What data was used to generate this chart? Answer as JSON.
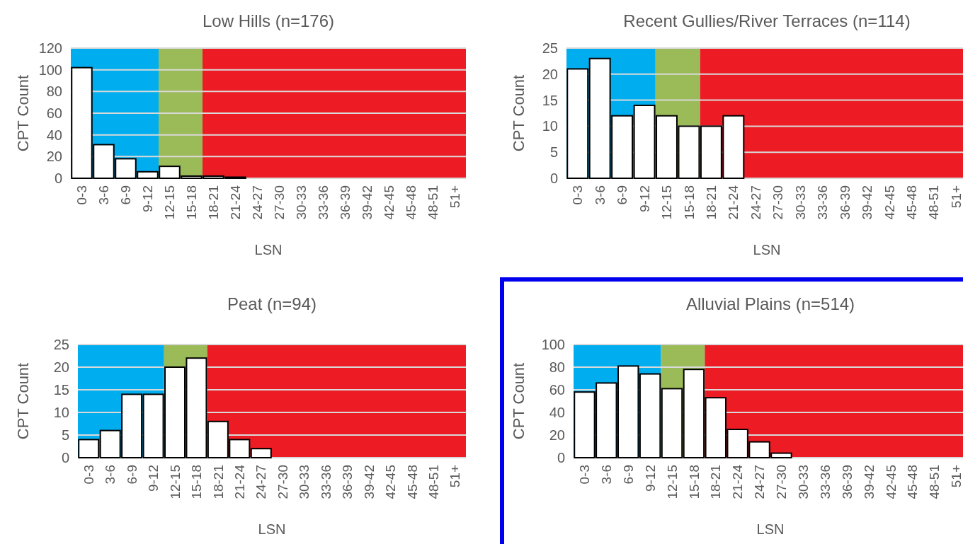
{
  "chart_data": [
    {
      "type": "bar",
      "title": "Low Hills (n=176)",
      "xlabel": "LSN",
      "ylabel": "CPT Count",
      "categories": [
        "0-3",
        "3-6",
        "6-9",
        "9-12",
        "12-15",
        "15-18",
        "18-21",
        "21-24",
        "24-27",
        "27-30",
        "30-33",
        "33-36",
        "36-39",
        "39-42",
        "42-45",
        "45-48",
        "48-51",
        "51+"
      ],
      "series": [
        {
          "color": "#ffffff",
          "values": [
            102,
            31,
            18,
            6,
            11,
            2,
            2,
            1,
            0,
            0,
            0,
            0,
            0,
            0,
            0,
            0,
            0,
            0
          ]
        }
      ],
      "ylim": [
        0,
        120
      ],
      "yticks": [
        0,
        20,
        40,
        60,
        80,
        100,
        120
      ],
      "grid": "y",
      "bands": [
        {
          "axis": "x",
          "from": "0-3",
          "to": "9-12",
          "color": "#00aeef"
        },
        {
          "axis": "x",
          "from": "12-15",
          "to": "15-18",
          "color": "#9bbb59"
        },
        {
          "axis": "x",
          "from": "18-21",
          "to": "51+",
          "color": "#ed1c24"
        }
      ]
    },
    {
      "type": "bar",
      "title": "Recent Gullies/River Terraces (n=114)",
      "xlabel": "LSN",
      "ylabel": "CPT Count",
      "categories": [
        "0-3",
        "3-6",
        "6-9",
        "9-12",
        "12-15",
        "15-18",
        "18-21",
        "21-24",
        "24-27",
        "27-30",
        "30-33",
        "33-36",
        "36-39",
        "39-42",
        "42-45",
        "45-48",
        "48-51",
        "51+"
      ],
      "series": [
        {
          "color": "#ffffff",
          "values": [
            21,
            23,
            12,
            14,
            12,
            10,
            10,
            12,
            0,
            0,
            0,
            0,
            0,
            0,
            0,
            0,
            0,
            0
          ]
        }
      ],
      "ylim": [
        0,
        25
      ],
      "yticks": [
        0,
        5,
        10,
        15,
        20,
        25
      ],
      "grid": "y",
      "bands": [
        {
          "axis": "x",
          "from": "0-3",
          "to": "9-12",
          "color": "#00aeef"
        },
        {
          "axis": "x",
          "from": "12-15",
          "to": "15-18",
          "color": "#9bbb59"
        },
        {
          "axis": "x",
          "from": "18-21",
          "to": "51+",
          "color": "#ed1c24"
        }
      ]
    },
    {
      "type": "bar",
      "title": "Peat (n=94)",
      "xlabel": "LSN",
      "ylabel": "CPT Count",
      "categories": [
        "0-3",
        "3-6",
        "6-9",
        "9-12",
        "12-15",
        "15-18",
        "18-21",
        "21-24",
        "24-27",
        "27-30",
        "30-33",
        "33-36",
        "36-39",
        "39-42",
        "42-45",
        "45-48",
        "48-51",
        "51+"
      ],
      "series": [
        {
          "color": "#ffffff",
          "values": [
            4,
            6,
            14,
            14,
            20,
            22,
            8,
            4,
            2,
            0,
            0,
            0,
            0,
            0,
            0,
            0,
            0,
            0
          ]
        }
      ],
      "ylim": [
        0,
        25
      ],
      "yticks": [
        0,
        5,
        10,
        15,
        20,
        25
      ],
      "grid": "y",
      "bands": [
        {
          "axis": "x",
          "from": "0-3",
          "to": "9-12",
          "color": "#00aeef"
        },
        {
          "axis": "x",
          "from": "12-15",
          "to": "15-18",
          "color": "#9bbb59"
        },
        {
          "axis": "x",
          "from": "18-21",
          "to": "51+",
          "color": "#ed1c24"
        }
      ]
    },
    {
      "type": "bar",
      "title": "Alluvial Plains (n=514)",
      "xlabel": "LSN",
      "ylabel": "CPT Count",
      "categories": [
        "0-3",
        "3-6",
        "6-9",
        "9-12",
        "12-15",
        "15-18",
        "18-21",
        "21-24",
        "24-27",
        "27-30",
        "30-33",
        "33-36",
        "36-39",
        "39-42",
        "42-45",
        "45-48",
        "48-51",
        "51+"
      ],
      "series": [
        {
          "color": "#ffffff",
          "values": [
            58,
            66,
            81,
            74,
            61,
            78,
            53,
            25,
            14,
            4,
            0,
            0,
            0,
            0,
            0,
            0,
            0,
            0
          ]
        }
      ],
      "ylim": [
        0,
        100
      ],
      "yticks": [
        0,
        20,
        40,
        60,
        80,
        100
      ],
      "grid": "y",
      "bands": [
        {
          "axis": "x",
          "from": "0-3",
          "to": "9-12",
          "color": "#00aeef"
        },
        {
          "axis": "x",
          "from": "12-15",
          "to": "15-18",
          "color": "#9bbb59"
        },
        {
          "axis": "x",
          "from": "18-21",
          "to": "51+",
          "color": "#ed1c24"
        }
      ]
    }
  ]
}
